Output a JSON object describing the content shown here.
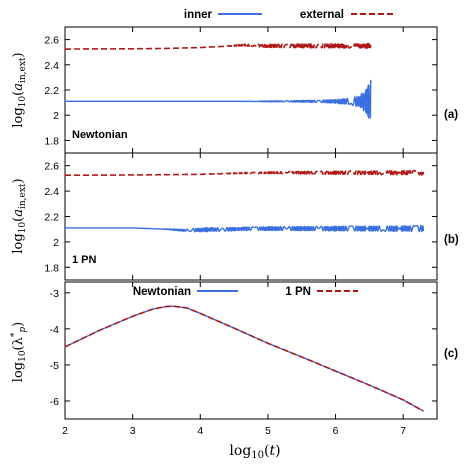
{
  "chart_data": [
    {
      "type": "line",
      "panel_label": "(a)",
      "note": "Newtonian",
      "ylabel": "log10(a_in,ext)",
      "xlabel": "",
      "xlim": [
        2,
        7.5
      ],
      "ylim": [
        1.7,
        2.7
      ],
      "yticks": [
        1.8,
        2.0,
        2.2,
        2.4,
        2.6
      ],
      "ytick_labels": [
        "1.8",
        "2",
        "2.2",
        "2.4",
        "2.6"
      ],
      "xticks": [
        2,
        3,
        4,
        5,
        6,
        7
      ],
      "show_xtick_labels": false,
      "legend": {
        "position": "top",
        "entries": [
          "inner",
          "external"
        ]
      },
      "series": [
        {
          "name": "inner",
          "color": "#3a6fe0",
          "style": "solid",
          "x": [
            2.0,
            3.0,
            4.0,
            4.5,
            5.0,
            5.5,
            5.8,
            6.0,
            6.2,
            6.35,
            6.45,
            6.52
          ],
          "y": [
            2.11,
            2.11,
            2.11,
            2.11,
            2.11,
            2.11,
            2.11,
            2.11,
            2.11,
            2.11,
            2.11,
            2.11
          ],
          "osc_amp": [
            0,
            0,
            0,
            0,
            0.003,
            0.006,
            0.01,
            0.015,
            0.025,
            0.045,
            0.09,
            0.17
          ]
        },
        {
          "name": "external",
          "color": "#b01818",
          "style": "dashed",
          "x": [
            2.0,
            3.0,
            3.5,
            4.0,
            4.3,
            4.5,
            4.6,
            4.8,
            5.0,
            5.5,
            6.0,
            6.52
          ],
          "y": [
            2.525,
            2.527,
            2.53,
            2.537,
            2.545,
            2.552,
            2.555,
            2.555,
            2.55,
            2.55,
            2.55,
            2.55
          ],
          "osc_amp": [
            0,
            0,
            0,
            0,
            0,
            0.003,
            0.006,
            0.009,
            0.012,
            0.014,
            0.016,
            0.018
          ]
        }
      ]
    },
    {
      "type": "line",
      "panel_label": "(b)",
      "note": "1 PN",
      "ylabel": "log10(a_in,ext)",
      "xlabel": "",
      "xlim": [
        2,
        7.5
      ],
      "ylim": [
        1.7,
        2.7
      ],
      "yticks": [
        1.8,
        2.0,
        2.2,
        2.4,
        2.6
      ],
      "ytick_labels": [
        "1.8",
        "2",
        "2.2",
        "2.4",
        "2.6"
      ],
      "xticks": [
        2,
        3,
        4,
        5,
        6,
        7
      ],
      "show_xtick_labels": false,
      "series": [
        {
          "name": "inner",
          "color": "#3a6fe0",
          "style": "solid",
          "x": [
            2.0,
            3.0,
            3.5,
            3.8,
            4.0,
            4.5,
            4.8,
            5.0,
            5.5,
            6.0,
            6.5,
            7.0,
            7.3
          ],
          "y": [
            2.11,
            2.11,
            2.1,
            2.09,
            2.095,
            2.1,
            2.105,
            2.105,
            2.105,
            2.105,
            2.105,
            2.105,
            2.105
          ],
          "osc_amp": [
            0,
            0,
            0.002,
            0.01,
            0.015,
            0.014,
            0.013,
            0.015,
            0.017,
            0.018,
            0.02,
            0.022,
            0.024
          ]
        },
        {
          "name": "external",
          "color": "#b01818",
          "style": "dashed",
          "x": [
            2.0,
            3.0,
            4.0,
            4.5,
            5.0,
            5.5,
            6.0,
            6.5,
            7.0,
            7.3
          ],
          "y": [
            2.525,
            2.527,
            2.532,
            2.54,
            2.545,
            2.545,
            2.545,
            2.545,
            2.545,
            2.545
          ],
          "osc_amp": [
            0,
            0,
            0,
            0.003,
            0.006,
            0.01,
            0.012,
            0.014,
            0.016,
            0.018
          ]
        }
      ]
    },
    {
      "type": "line",
      "panel_label": "(c)",
      "ylabel": "log10(λ*_p)",
      "xlabel": "log10(t)",
      "xlim": [
        2,
        7.5
      ],
      "ylim": [
        -6.5,
        -2.7
      ],
      "yticks": [
        -6,
        -5,
        -4,
        -3
      ],
      "ytick_labels": [
        "-6",
        "-5",
        "-4",
        "-3"
      ],
      "xticks": [
        2,
        3,
        4,
        5,
        6,
        7
      ],
      "xtick_labels": [
        "2",
        "3",
        "4",
        "5",
        "6",
        "7"
      ],
      "show_xtick_labels": true,
      "legend": {
        "position": "top",
        "entries": [
          "Newtonian",
          "1 PN"
        ]
      },
      "series": [
        {
          "name": "Newtonian",
          "color": "#3a6fe0",
          "style": "solid",
          "x": [
            2.0,
            2.5,
            3.0,
            3.3,
            3.5,
            3.6,
            3.8,
            4.0,
            4.5,
            5.0,
            5.5,
            6.0,
            6.5,
            7.0,
            7.3
          ],
          "y": [
            -4.5,
            -4.05,
            -3.65,
            -3.45,
            -3.38,
            -3.37,
            -3.42,
            -3.57,
            -3.98,
            -4.4,
            -4.78,
            -5.17,
            -5.56,
            -5.97,
            -6.28
          ]
        },
        {
          "name": "1 PN",
          "color": "#b01818",
          "style": "dashed",
          "x": [
            2.0,
            2.5,
            3.0,
            3.3,
            3.5,
            3.6,
            3.8,
            4.0,
            4.5,
            5.0,
            5.5,
            6.0,
            6.5,
            7.0,
            7.3
          ],
          "y": [
            -4.5,
            -4.05,
            -3.65,
            -3.45,
            -3.38,
            -3.37,
            -3.42,
            -3.57,
            -3.98,
            -4.4,
            -4.78,
            -5.17,
            -5.56,
            -5.97,
            -6.28
          ]
        }
      ]
    }
  ]
}
